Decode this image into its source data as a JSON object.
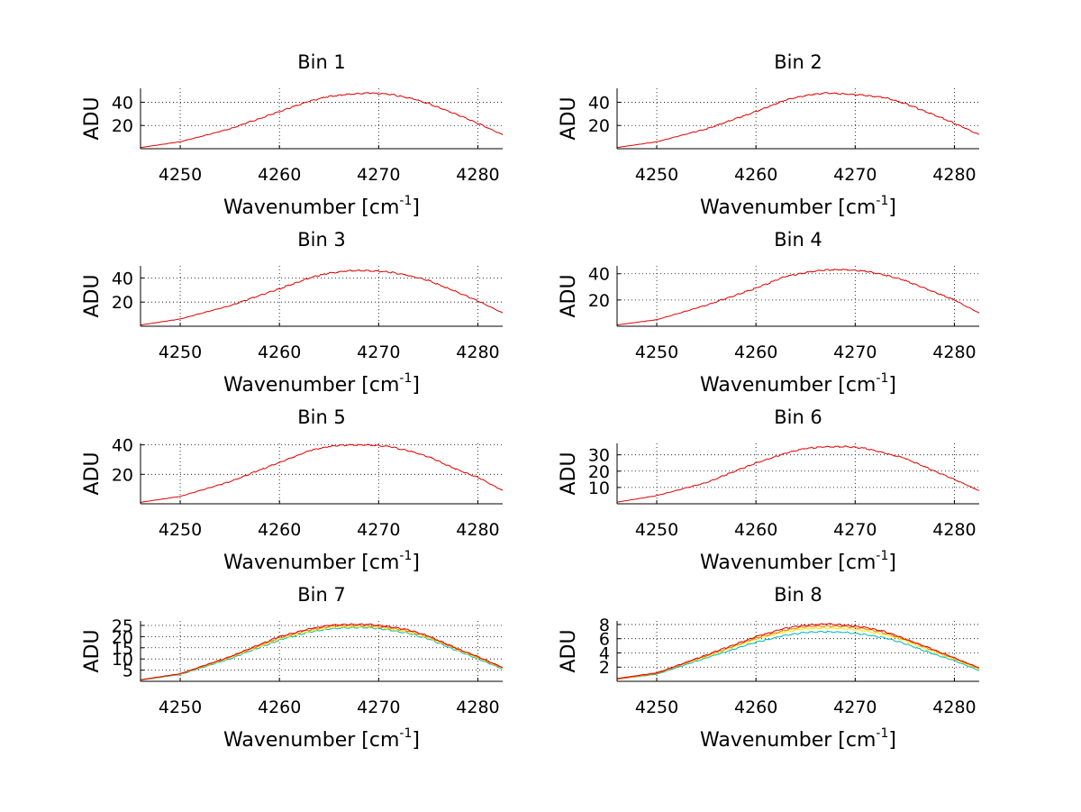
{
  "figure": {
    "background": "#ffffff",
    "series_colors": [
      "#00b7c3",
      "#f2e600",
      "#e87a00",
      "#e00000"
    ]
  },
  "chart_data": [
    {
      "type": "line",
      "title": "Bin 1",
      "xlabel": "Wavenumber [cm-1]",
      "xlabel_main": "Wavenumber [cm",
      "xlabel_sup": "-1",
      "xlabel_close": "]",
      "ylabel": "ADU",
      "xlim": [
        4246,
        4282.5
      ],
      "ylim": [
        0,
        52
      ],
      "xticks": [
        4250,
        4260,
        4270,
        4280
      ],
      "yticks": [
        20,
        40
      ],
      "grid": true,
      "x": [
        4246,
        4250,
        4255,
        4260,
        4263,
        4265,
        4267,
        4269,
        4271,
        4273,
        4275,
        4278,
        4280,
        4282.5
      ],
      "series": [
        {
          "values": [
            1,
            6,
            17,
            32,
            41,
            45,
            47,
            48,
            47,
            44,
            39,
            29,
            22,
            12
          ]
        }
      ]
    },
    {
      "type": "line",
      "title": "Bin 2",
      "xlabel": "Wavenumber [cm-1]",
      "xlabel_main": "Wavenumber [cm",
      "xlabel_sup": "-1",
      "xlabel_close": "]",
      "ylabel": "ADU",
      "xlim": [
        4246,
        4282.5
      ],
      "ylim": [
        0,
        52
      ],
      "xticks": [
        4250,
        4260,
        4270,
        4280
      ],
      "yticks": [
        20,
        40
      ],
      "grid": true,
      "x": [
        4246,
        4250,
        4255,
        4260,
        4263,
        4265,
        4267,
        4269,
        4271,
        4273,
        4275,
        4278,
        4280,
        4282.5
      ],
      "series": [
        {
          "values": [
            1,
            6,
            17,
            32,
            42,
            46,
            48,
            47,
            46,
            44,
            39,
            29,
            22,
            12
          ]
        }
      ]
    },
    {
      "type": "line",
      "title": "Bin 3",
      "xlabel": "Wavenumber [cm-1]",
      "xlabel_main": "Wavenumber [cm",
      "xlabel_sup": "-1",
      "xlabel_close": "]",
      "ylabel": "ADU",
      "xlim": [
        4246,
        4282.5
      ],
      "ylim": [
        0,
        50
      ],
      "xticks": [
        4250,
        4260,
        4270,
        4280
      ],
      "yticks": [
        20,
        40
      ],
      "grid": true,
      "x": [
        4246,
        4250,
        4255,
        4260,
        4263,
        4265,
        4267,
        4269,
        4271,
        4273,
        4275,
        4278,
        4280,
        4282.5
      ],
      "series": [
        {
          "values": [
            1,
            6,
            17,
            31,
            40,
            44,
            46,
            46,
            45,
            42,
            38,
            28,
            21,
            11
          ]
        }
      ]
    },
    {
      "type": "line",
      "title": "Bin 4",
      "xlabel": "Wavenumber [cm-1]",
      "xlabel_main": "Wavenumber [cm",
      "xlabel_sup": "-1",
      "xlabel_close": "]",
      "ylabel": "ADU",
      "xlim": [
        4246,
        4282.5
      ],
      "ylim": [
        0,
        46
      ],
      "xticks": [
        4250,
        4260,
        4270,
        4280
      ],
      "yticks": [
        20,
        40
      ],
      "grid": true,
      "x": [
        4246,
        4250,
        4255,
        4260,
        4263,
        4265,
        4267,
        4269,
        4271,
        4273,
        4275,
        4278,
        4280,
        4282.5
      ],
      "series": [
        {
          "values": [
            1,
            5,
            16,
            29,
            38,
            41,
            43,
            43,
            42,
            39,
            35,
            26,
            20,
            10
          ]
        }
      ]
    },
    {
      "type": "line",
      "title": "Bin 5",
      "xlabel": "Wavenumber [cm-1]",
      "xlabel_main": "Wavenumber [cm",
      "xlabel_sup": "-1",
      "xlabel_close": "]",
      "ylabel": "ADU",
      "xlim": [
        4246,
        4282.5
      ],
      "ylim": [
        0,
        41
      ],
      "xticks": [
        4250,
        4260,
        4270,
        4280
      ],
      "yticks": [
        20,
        40
      ],
      "grid": true,
      "x": [
        4246,
        4250,
        4255,
        4260,
        4263,
        4265,
        4267,
        4269,
        4271,
        4273,
        4275,
        4278,
        4280,
        4282.5
      ],
      "series": [
        {
          "values": [
            1,
            5,
            15,
            28,
            36,
            39,
            40,
            40,
            39,
            36,
            32,
            23,
            18,
            9
          ]
        }
      ]
    },
    {
      "type": "line",
      "title": "Bin 6",
      "xlabel": "Wavenumber [cm-1]",
      "xlabel_main": "Wavenumber [cm",
      "xlabel_sup": "-1",
      "xlabel_close": "]",
      "ylabel": "ADU",
      "xlim": [
        4246,
        4282.5
      ],
      "ylim": [
        0,
        37
      ],
      "xticks": [
        4250,
        4260,
        4270,
        4280
      ],
      "yticks": [
        10,
        20,
        30
      ],
      "grid": true,
      "x": [
        4246,
        4250,
        4255,
        4260,
        4263,
        4265,
        4267,
        4269,
        4271,
        4273,
        4275,
        4278,
        4280,
        4282.5
      ],
      "series": [
        {
          "values": [
            1,
            5,
            13,
            25,
            31,
            34,
            35,
            35,
            34,
            31,
            28,
            20,
            15,
            8
          ]
        }
      ]
    },
    {
      "type": "line",
      "title": "Bin 7",
      "xlabel": "Wavenumber [cm-1]",
      "xlabel_main": "Wavenumber [cm",
      "xlabel_sup": "-1",
      "xlabel_close": "]",
      "ylabel": "ADU",
      "xlim": [
        4246,
        4282.5
      ],
      "ylim": [
        0,
        27
      ],
      "xticks": [
        4250,
        4260,
        4270,
        4280
      ],
      "yticks": [
        5,
        10,
        15,
        20,
        25
      ],
      "grid": true,
      "x": [
        4246,
        4250,
        4255,
        4260,
        4263,
        4265,
        4267,
        4269,
        4271,
        4273,
        4275,
        4278,
        4280,
        4282.5
      ],
      "series": [
        {
          "values": [
            0.5,
            3,
            10,
            18.5,
            22,
            23.5,
            24,
            24,
            23,
            21.5,
            19,
            13.5,
            10,
            5.5
          ]
        },
        {
          "values": [
            0.6,
            3.2,
            10.5,
            19,
            22.5,
            24,
            24.5,
            24.5,
            23.5,
            22,
            19.5,
            14,
            10.5,
            5.8
          ]
        },
        {
          "values": [
            0.6,
            3.3,
            10.8,
            19.5,
            23,
            24.5,
            25,
            25,
            24,
            22.5,
            20,
            14.3,
            10.8,
            6
          ]
        },
        {
          "values": [
            0.7,
            3.4,
            11,
            20,
            23.5,
            25,
            25.5,
            25.5,
            24.5,
            23,
            20.3,
            14.5,
            11,
            6.2
          ]
        }
      ]
    },
    {
      "type": "line",
      "title": "Bin 8",
      "xlabel": "Wavenumber [cm-1]",
      "xlabel_main": "Wavenumber [cm",
      "xlabel_sup": "-1",
      "xlabel_close": "]",
      "ylabel": "ADU",
      "xlim": [
        4246,
        4282.5
      ],
      "ylim": [
        0,
        8.5
      ],
      "xticks": [
        4250,
        4260,
        4270,
        4280
      ],
      "yticks": [
        2,
        4,
        6,
        8
      ],
      "grid": true,
      "x": [
        4246,
        4250,
        4255,
        4260,
        4263,
        4265,
        4267,
        4269,
        4271,
        4273,
        4275,
        4278,
        4280,
        4282.5
      ],
      "series": [
        {
          "values": [
            0.3,
            1,
            3.3,
            5.5,
            6.5,
            6.9,
            7.0,
            6.9,
            6.6,
            6.1,
            5.3,
            3.8,
            2.9,
            1.5
          ]
        },
        {
          "values": [
            0.3,
            1.1,
            3.5,
            5.9,
            7.0,
            7.4,
            7.5,
            7.4,
            7.1,
            6.6,
            5.7,
            4.1,
            3.1,
            1.7
          ]
        },
        {
          "values": [
            0.3,
            1.1,
            3.6,
            6.1,
            7.2,
            7.7,
            7.8,
            7.7,
            7.4,
            6.8,
            5.9,
            4.3,
            3.2,
            1.8
          ]
        },
        {
          "values": [
            0.4,
            1.2,
            3.7,
            6.3,
            7.5,
            7.9,
            8.1,
            7.9,
            7.6,
            7.0,
            6.0,
            4.4,
            3.3,
            1.9
          ]
        }
      ]
    }
  ]
}
